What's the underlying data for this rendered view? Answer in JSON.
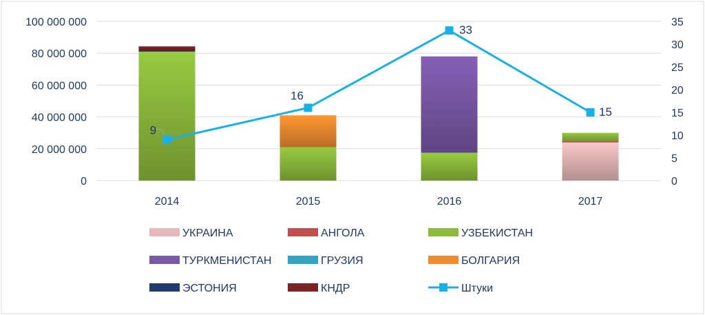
{
  "chart_data": {
    "type": "bar",
    "stacked": true,
    "categories": [
      "2014",
      "2015",
      "2016",
      "2017"
    ],
    "y_left": {
      "lim": [
        0,
        100000000
      ],
      "ticks": [
        0,
        20000000,
        40000000,
        60000000,
        80000000,
        100000000
      ],
      "tick_labels": [
        "0",
        "20 000 000",
        "40 000 000",
        "60 000 000",
        "80 000 000",
        "100 000 000"
      ]
    },
    "y_right": {
      "lim": [
        0,
        35
      ],
      "ticks": [
        0,
        5,
        10,
        15,
        20,
        25,
        30,
        35
      ],
      "tick_labels": [
        "0",
        "5",
        "10",
        "15",
        "20",
        "25",
        "30",
        "35"
      ]
    },
    "series": [
      {
        "name": "УКРАИНА",
        "color": "#e6b9b8",
        "values": [
          0,
          0,
          0,
          24000000
        ]
      },
      {
        "name": "АНГОЛА",
        "color": "#c0504d",
        "values": [
          0,
          0,
          0,
          700000
        ]
      },
      {
        "name": "УЗБЕКИСТАН",
        "color": "#8dbb3c",
        "values": [
          81000000,
          21000000,
          17500000,
          5300000
        ]
      },
      {
        "name": "ТУРКМЕНИСТАН",
        "color": "#7b59a8",
        "values": [
          0,
          0,
          60500000,
          0
        ]
      },
      {
        "name": "ГРУЗИЯ",
        "color": "#31a5c4",
        "values": [
          0,
          0,
          0,
          0
        ]
      },
      {
        "name": "БОЛГАРИЯ",
        "color": "#f08c2e",
        "values": [
          0,
          20000000,
          0,
          0
        ]
      },
      {
        "name": "ЭСТОНИЯ",
        "color": "#1f3c6e",
        "values": [
          600000,
          0,
          0,
          0
        ]
      },
      {
        "name": "КНДР",
        "color": "#7b2222",
        "values": [
          2700000,
          0,
          0,
          0
        ]
      }
    ],
    "line_series": {
      "name": "Штуки",
      "color": "#18b0e8",
      "axis": "right",
      "values": [
        9,
        16,
        33,
        15
      ],
      "labels": [
        "9",
        "16",
        "33",
        "15"
      ]
    },
    "grid": true,
    "legend_position": "bottom"
  }
}
